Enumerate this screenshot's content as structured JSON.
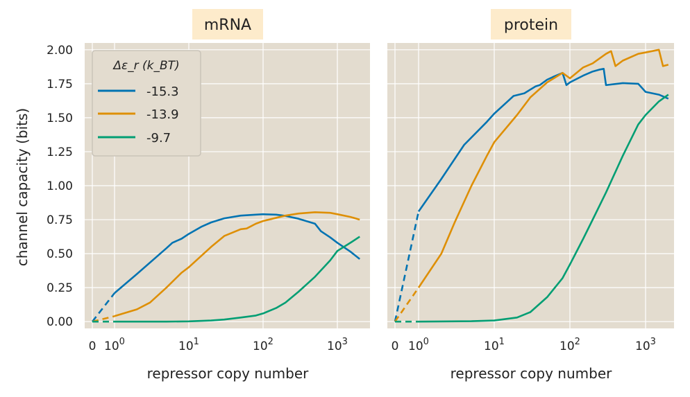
{
  "chart_data": [
    {
      "type": "line",
      "title": "mRNA",
      "xlabel": "repressor copy number",
      "ylabel": "channel capacity (bits)",
      "xscale": "symlog",
      "xlim": [
        -0.3,
        2000
      ],
      "ylim": [
        -0.05,
        2.05
      ],
      "xtick_labels": [
        "0",
        "10^0",
        "10^1",
        "10^2",
        "10^3"
      ],
      "ytick_labels": [
        "0.00",
        "0.25",
        "0.50",
        "0.75",
        "1.00",
        "1.25",
        "1.50",
        "1.75",
        "2.00"
      ],
      "grid": true,
      "legend": {
        "title": "Δε_r (k_BT)",
        "placement": "top-left",
        "entries": [
          "-15.3",
          "-13.9",
          "-9.7"
        ]
      },
      "series": [
        {
          "name": "-15.3",
          "color": "#0173b2",
          "dashed_x": [
            0,
            1
          ],
          "x": [
            1,
            2,
            5,
            6,
            8,
            10,
            15,
            20,
            30,
            50,
            80,
            100,
            150,
            200,
            300,
            500,
            600,
            800,
            1000,
            1500,
            2000
          ],
          "y": [
            0.21,
            0.35,
            0.54,
            0.58,
            0.61,
            0.645,
            0.7,
            0.73,
            0.76,
            0.78,
            0.787,
            0.79,
            0.787,
            0.778,
            0.757,
            0.72,
            0.665,
            0.62,
            0.58,
            0.515,
            0.46
          ]
        },
        {
          "name": "-13.9",
          "color": "#de8f05",
          "dashed_x": [
            0,
            1
          ],
          "x": [
            1,
            2,
            3,
            5,
            8,
            10,
            20,
            30,
            50,
            60,
            80,
            100,
            200,
            300,
            500,
            800,
            1000,
            1500,
            2000
          ],
          "y": [
            0.04,
            0.09,
            0.14,
            0.25,
            0.36,
            0.4,
            0.55,
            0.63,
            0.68,
            0.685,
            0.72,
            0.74,
            0.78,
            0.795,
            0.805,
            0.8,
            0.79,
            0.77,
            0.75
          ]
        },
        {
          "name": "-9.7",
          "color": "#029e73",
          "dashed_x": [
            0,
            1
          ],
          "x": [
            1,
            5,
            10,
            20,
            30,
            50,
            80,
            100,
            150,
            200,
            300,
            500,
            800,
            1000,
            1500,
            2000
          ],
          "y": [
            0.0,
            0.0,
            0.002,
            0.008,
            0.015,
            0.03,
            0.045,
            0.06,
            0.1,
            0.14,
            0.22,
            0.33,
            0.45,
            0.52,
            0.58,
            0.625
          ]
        }
      ]
    },
    {
      "type": "line",
      "title": "protein",
      "xlabel": "repressor copy number",
      "xscale": "symlog",
      "xlim": [
        -0.3,
        2000
      ],
      "ylim": [
        -0.05,
        2.05
      ],
      "xtick_labels": [
        "0",
        "10^0",
        "10^1",
        "10^2",
        "10^3"
      ],
      "grid": true,
      "series": [
        {
          "name": "-15.3",
          "color": "#0173b2",
          "dashed_x": [
            0,
            1
          ],
          "x": [
            1,
            2,
            4,
            8,
            10,
            15,
            18,
            25,
            35,
            40,
            50,
            60,
            80,
            90,
            100,
            150,
            200,
            250,
            280,
            300,
            500,
            800,
            1000,
            1500,
            2000
          ],
          "y": [
            0.81,
            1.05,
            1.3,
            1.47,
            1.53,
            1.62,
            1.66,
            1.68,
            1.73,
            1.74,
            1.78,
            1.8,
            1.83,
            1.74,
            1.76,
            1.81,
            1.84,
            1.855,
            1.86,
            1.74,
            1.755,
            1.75,
            1.69,
            1.67,
            1.64
          ]
        },
        {
          "name": "-13.9",
          "color": "#de8f05",
          "dashed_x": [
            0,
            1
          ],
          "x": [
            1,
            2,
            3,
            5,
            8,
            10,
            20,
            30,
            50,
            70,
            80,
            100,
            150,
            200,
            300,
            350,
            400,
            500,
            800,
            1000,
            1500,
            1700,
            2000
          ],
          "y": [
            0.25,
            0.5,
            0.73,
            1.0,
            1.22,
            1.32,
            1.52,
            1.65,
            1.76,
            1.81,
            1.83,
            1.79,
            1.87,
            1.9,
            1.97,
            1.99,
            1.88,
            1.92,
            1.97,
            1.98,
            2.0,
            1.88,
            1.89
          ]
        },
        {
          "name": "-9.7",
          "color": "#029e73",
          "dashed_x": [
            0,
            1
          ],
          "x": [
            1,
            5,
            10,
            20,
            30,
            50,
            80,
            100,
            150,
            200,
            300,
            500,
            800,
            1000,
            1500,
            2000
          ],
          "y": [
            0.0,
            0.003,
            0.008,
            0.03,
            0.07,
            0.18,
            0.32,
            0.42,
            0.61,
            0.75,
            0.95,
            1.22,
            1.45,
            1.52,
            1.62,
            1.67
          ]
        }
      ]
    }
  ]
}
